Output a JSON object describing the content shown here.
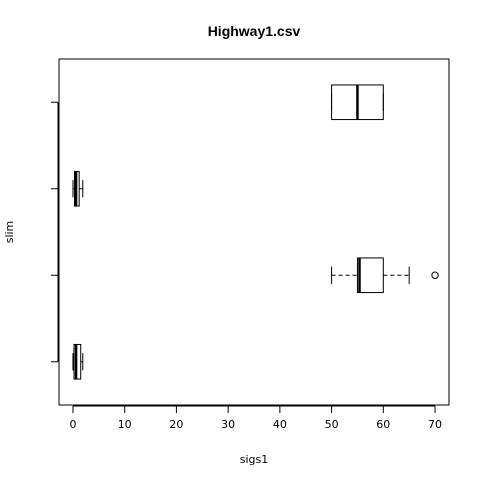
{
  "chart_data": {
    "type": "boxplot",
    "title": "Highway1.csv",
    "xlabel": "sigs1",
    "ylabel": "slim",
    "orientation": "horizontal",
    "xlim": [
      -2.7,
      72.7
    ],
    "ylim": [
      0.5,
      4.5
    ],
    "x_ticks": [
      0,
      10,
      20,
      30,
      40,
      50,
      60,
      70
    ],
    "x_tick_labels": [
      "0",
      "10",
      "20",
      "30",
      "40",
      "50",
      "60",
      "70"
    ],
    "y_ticks": [
      1,
      2,
      3,
      4
    ],
    "y_tick_labels": [
      "",
      "",
      "",
      ""
    ],
    "grid": false,
    "boxes": [
      {
        "position": 1,
        "whisker_low": 0.0,
        "q1": 0.2,
        "median": 0.6,
        "q3": 1.5,
        "whisker_high": 1.9,
        "outliers": []
      },
      {
        "position": 2,
        "whisker_low": 50,
        "q1": 55,
        "median": 55.4,
        "q3": 60,
        "whisker_high": 65,
        "outliers": [
          70
        ]
      },
      {
        "position": 3,
        "whisker_low": 0.0,
        "q1": 0.3,
        "median": 0.6,
        "q3": 1.2,
        "whisker_high": 1.9,
        "outliers": []
      },
      {
        "position": 4,
        "whisker_low": 50,
        "q1": 50,
        "median": 55,
        "q3": 60,
        "whisker_high": 60,
        "outliers": []
      }
    ]
  }
}
